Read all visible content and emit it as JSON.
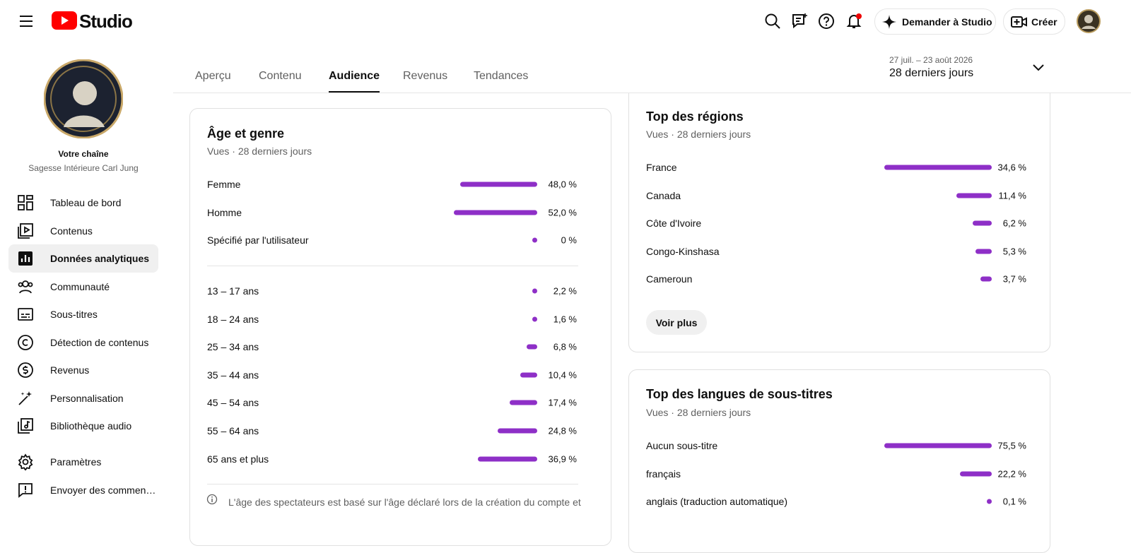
{
  "header": {
    "logo_text": "Studio",
    "ask_button": "Demander à Studio",
    "create_button": "Créer"
  },
  "sidebar": {
    "channel_label": "Votre chaîne",
    "channel_name": "Sagesse Intérieure Carl Jung",
    "nav": [
      "Tableau de bord",
      "Contenus",
      "Données analytiques",
      "Communauté",
      "Sous-titres",
      "Détection de contenus",
      "Revenus",
      "Personnalisation",
      "Bibliothèque audio"
    ],
    "selected_nav": 2,
    "bottom_nav": [
      "Paramètres",
      "Envoyer des commen…"
    ]
  },
  "tabs": [
    "Aperçu",
    "Contenu",
    "Audience",
    "Revenus",
    "Tendances"
  ],
  "selected_tab": 2,
  "date_range": {
    "dates": "27 juil. – 23 août 2026",
    "label": "28 derniers jours"
  },
  "age_gender": {
    "title": "Âge et genre",
    "subtitle": "Vues · 28 derniers jours",
    "gender": [
      {
        "label": "Femme",
        "value": 48.0,
        "value_label": "48,0 %"
      },
      {
        "label": "Homme",
        "value": 52.0,
        "value_label": "52,0 %"
      },
      {
        "label": "Spécifié par l'utilisateur",
        "value": 0,
        "value_label": "0 %"
      }
    ],
    "age": [
      {
        "label": "13 – 17 ans",
        "value": 2.2,
        "value_label": "2,2 %"
      },
      {
        "label": "18 – 24 ans",
        "value": 1.6,
        "value_label": "1,6 %"
      },
      {
        "label": "25 – 34 ans",
        "value": 6.8,
        "value_label": "6,8 %"
      },
      {
        "label": "35 – 44 ans",
        "value": 10.4,
        "value_label": "10,4 %"
      },
      {
        "label": "45 – 54 ans",
        "value": 17.4,
        "value_label": "17,4 %"
      },
      {
        "label": "55 – 64 ans",
        "value": 24.8,
        "value_label": "24,8 %"
      },
      {
        "label": "65 ans et plus",
        "value": 36.9,
        "value_label": "36,9 %"
      }
    ],
    "note": "L'âge des spectateurs est basé sur l'âge déclaré lors de la création du compte et"
  },
  "regions": {
    "title": "Top des régions",
    "subtitle": "Vues · 28 derniers jours",
    "rows": [
      {
        "label": "France",
        "value": 34.6,
        "value_label": "34,6 %"
      },
      {
        "label": "Canada",
        "value": 11.4,
        "value_label": "11,4 %"
      },
      {
        "label": "Côte d'Ivoire",
        "value": 6.2,
        "value_label": "6,2 %"
      },
      {
        "label": "Congo-Kinshasa",
        "value": 5.3,
        "value_label": "5,3 %"
      },
      {
        "label": "Cameroun",
        "value": 3.7,
        "value_label": "3,7 %"
      }
    ],
    "button": "Voir plus"
  },
  "languages": {
    "title": "Top des langues de sous-titres",
    "subtitle": "Vues · 28 derniers jours",
    "rows": [
      {
        "label": "Aucun sous-titre",
        "value": 75.5,
        "value_label": "75,5 %"
      },
      {
        "label": "français",
        "value": 22.2,
        "value_label": "22,2 %"
      },
      {
        "label": "anglais (traduction automatique)",
        "value": 0.1,
        "value_label": "0,1 %"
      }
    ]
  }
}
